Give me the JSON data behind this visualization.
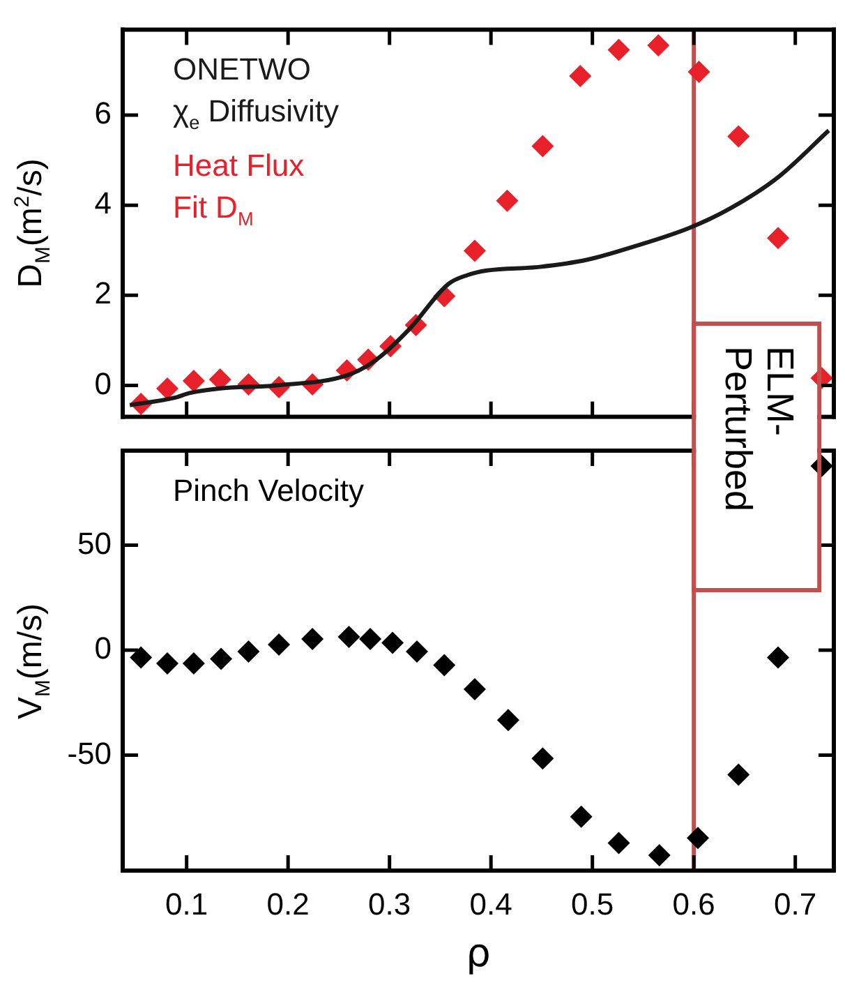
{
  "chart_data": [
    {
      "type": "scatter",
      "ylabel": "D$_{M}$(m$^{2}$/s)",
      "xlim": [
        0.037,
        0.738
      ],
      "xticks": [
        0.1,
        0.2,
        0.3,
        0.4,
        0.5,
        0.6,
        0.7
      ],
      "ylim": [
        -0.7,
        7.9
      ],
      "yticks": [
        0,
        2,
        4,
        6
      ],
      "tick_labels": "y",
      "grid": false,
      "legend": "top left",
      "marker": "diamond",
      "ref_lines": [
        {
          "axis": "x",
          "value": 0.6,
          "color": "#c0504d"
        }
      ],
      "series": [
        {
          "name": "ONETWO χ$_{e}$ Diffusivity",
          "type": "line",
          "marker": "none",
          "color": "#1a1a1a",
          "x": [
            0.044,
            0.089,
            0.103,
            0.132,
            0.188,
            0.259,
            0.287,
            0.32,
            0.358,
            0.377,
            0.396,
            0.448,
            0.495,
            0.542,
            0.596,
            0.636,
            0.683,
            0.733
          ],
          "values": [
            -0.44,
            -0.27,
            -0.17,
            -0.07,
            0,
            0.23,
            0.57,
            1.26,
            2.25,
            2.45,
            2.55,
            2.63,
            2.79,
            3.09,
            3.5,
            3.93,
            4.62,
            5.66
          ]
        },
        {
          "name": "Heat Flux Fit D$_{M}$",
          "type": "scatter",
          "color": "#e8202a",
          "x": [
            0.055,
            0.081,
            0.107,
            0.133,
            0.161,
            0.191,
            0.224,
            0.258,
            0.279,
            0.301,
            0.326,
            0.354,
            0.384,
            0.416,
            0.451,
            0.488,
            0.526,
            0.565,
            0.605,
            0.644,
            0.683,
            0.726
          ],
          "values": [
            -0.41,
            -0.07,
            0.1,
            0.13,
            0.02,
            -0.04,
            0.02,
            0.33,
            0.57,
            0.87,
            1.34,
            1.98,
            2.99,
            4.1,
            5.31,
            6.87,
            7.45,
            7.55,
            6.96,
            5.53,
            3.27,
            0.16
          ]
        }
      ]
    },
    {
      "type": "scatter",
      "xlabel": "ρ",
      "ylabel": "V$_{M}$(m/s)",
      "xlim": [
        0.037,
        0.738
      ],
      "xticks": [
        0.1,
        0.2,
        0.3,
        0.4,
        0.5,
        0.6,
        0.7
      ],
      "ylim": [
        -105,
        95
      ],
      "yticks": [
        -50,
        0,
        50
      ],
      "grid": false,
      "legend": "top left",
      "marker": "diamond",
      "ref_lines": [
        {
          "axis": "x",
          "value": 0.6,
          "label": "ELM-Perturbed",
          "color": "#c0504d"
        }
      ],
      "series": [
        {
          "name": "Pinch Velocity",
          "color": "#000000",
          "x": [
            0.055,
            0.081,
            0.107,
            0.134,
            0.161,
            0.191,
            0.224,
            0.26,
            0.281,
            0.303,
            0.327,
            0.354,
            0.384,
            0.417,
            0.451,
            0.489,
            0.526,
            0.566,
            0.604,
            0.644,
            0.683,
            0.726
          ],
          "values": [
            -3.5,
            -6.3,
            -6.3,
            -4.2,
            -0.7,
            2.6,
            5.3,
            6.3,
            5.3,
            3.5,
            -0.7,
            -7.2,
            -18.6,
            -33.3,
            -51.6,
            -79.3,
            -91.9,
            -97.7,
            -89.5,
            -59.3,
            -3.5,
            87.7
          ]
        }
      ]
    }
  ]
}
